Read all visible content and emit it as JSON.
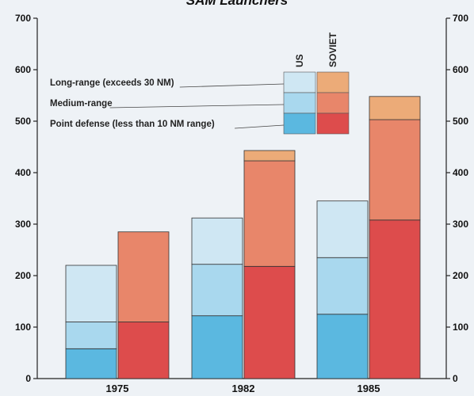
{
  "chart_data": {
    "type": "bar",
    "title": "SAM Launchers",
    "categories": [
      "1975",
      "1982",
      "1985"
    ],
    "ylim": [
      0,
      700
    ],
    "yticks": [
      0,
      100,
      200,
      300,
      400,
      500,
      600,
      700
    ],
    "ytick_labels_left": [
      "0",
      "100",
      "200",
      "300",
      "400",
      "500",
      "600",
      "700"
    ],
    "ytick_labels_right": [
      "0",
      "100",
      "200",
      "300",
      "400",
      "500",
      "600",
      "700"
    ],
    "stacked": true,
    "groups": [
      "US",
      "SOVIET"
    ],
    "layers": [
      "Point defense (less than 10 NM range)",
      "Medium-range",
      "Long-range (exceeds 30 NM)"
    ],
    "legend_placement": "top-center",
    "series": [
      {
        "group": "US",
        "layer": "Point defense (less than 10 NM range)",
        "values": [
          58,
          122,
          125
        ]
      },
      {
        "group": "US",
        "layer": "Medium-range",
        "values": [
          52,
          100,
          110
        ]
      },
      {
        "group": "US",
        "layer": "Long-range (exceeds 30 NM)",
        "values": [
          110,
          90,
          110
        ]
      },
      {
        "group": "SOVIET",
        "layer": "Point defense (less than 10 NM range)",
        "values": [
          110,
          218,
          308
        ]
      },
      {
        "group": "SOVIET",
        "layer": "Medium-range",
        "values": [
          175,
          205,
          195
        ]
      },
      {
        "group": "SOVIET",
        "layer": "Long-range (exceeds 30 NM)",
        "values": [
          0,
          20,
          45
        ]
      }
    ],
    "colors": {
      "US": [
        "#5bb8e0",
        "#a9d8ee",
        "#cfe7f3"
      ],
      "SOVIET": [
        "#dd4c4c",
        "#e8866a",
        "#ecab78"
      ]
    },
    "legend": {
      "labels": [
        "Long-range (exceeds 30 NM)",
        "Medium-range",
        "Point defense (less than 10 NM range)"
      ],
      "col_headers": [
        "US",
        "SOVIET"
      ]
    },
    "grid": false
  }
}
